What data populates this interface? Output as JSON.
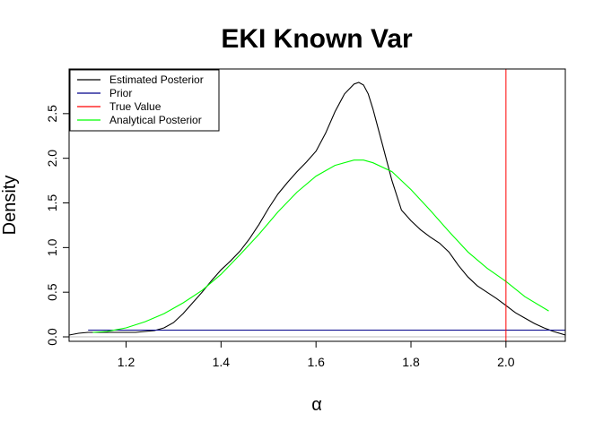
{
  "chart_data": {
    "type": "line",
    "title": "EKI Known Var",
    "xlabel": "α",
    "ylabel": "Density",
    "xlim": [
      1.08,
      2.125
    ],
    "ylim": [
      -0.05,
      3.0
    ],
    "x_ticks": [
      1.2,
      1.4,
      1.6,
      1.8,
      2.0
    ],
    "x_tick_labels": [
      "1.2",
      "1.4",
      "1.6",
      "1.8",
      "2.0"
    ],
    "y_ticks": [
      0.0,
      0.5,
      1.0,
      1.5,
      2.0,
      2.5
    ],
    "y_tick_labels": [
      "0.0",
      "0.5",
      "1.0",
      "1.5",
      "2.0",
      "2.5"
    ],
    "grid": false,
    "legend_position": "top-left",
    "legend": [
      {
        "label": "Estimated Posterior",
        "color": "#000000"
      },
      {
        "label": "Prior",
        "color": "#00008B"
      },
      {
        "label": "True Value",
        "color": "#FF0000"
      },
      {
        "label": "Analytical Posterior",
        "color": "#00FF00"
      }
    ],
    "series": [
      {
        "name": "Estimated Posterior",
        "color": "#000000",
        "x": [
          1.08,
          1.1,
          1.12,
          1.14,
          1.17,
          1.2,
          1.22,
          1.24,
          1.26,
          1.28,
          1.3,
          1.32,
          1.34,
          1.36,
          1.38,
          1.4,
          1.42,
          1.44,
          1.46,
          1.48,
          1.5,
          1.52,
          1.54,
          1.56,
          1.58,
          1.6,
          1.62,
          1.64,
          1.66,
          1.68,
          1.69,
          1.7,
          1.71,
          1.72,
          1.74,
          1.76,
          1.78,
          1.8,
          1.82,
          1.84,
          1.86,
          1.88,
          1.9,
          1.92,
          1.94,
          1.96,
          1.98,
          2.0,
          2.02,
          2.04,
          2.06,
          2.08,
          2.1,
          2.125
        ],
        "y": [
          0.02,
          0.04,
          0.05,
          0.05,
          0.05,
          0.05,
          0.05,
          0.06,
          0.07,
          0.1,
          0.16,
          0.26,
          0.38,
          0.5,
          0.63,
          0.75,
          0.85,
          0.96,
          1.1,
          1.26,
          1.44,
          1.6,
          1.73,
          1.85,
          1.96,
          2.08,
          2.28,
          2.52,
          2.72,
          2.83,
          2.85,
          2.82,
          2.72,
          2.55,
          2.15,
          1.75,
          1.42,
          1.3,
          1.2,
          1.12,
          1.05,
          0.95,
          0.8,
          0.67,
          0.57,
          0.5,
          0.43,
          0.35,
          0.27,
          0.21,
          0.15,
          0.1,
          0.06,
          0.02
        ]
      },
      {
        "name": "Prior",
        "color": "#00008B",
        "x": [
          1.12,
          2.125
        ],
        "y": [
          0.075,
          0.075
        ]
      },
      {
        "name": "Analytical Posterior",
        "color": "#00FF00",
        "x": [
          1.13,
          1.16,
          1.2,
          1.24,
          1.28,
          1.32,
          1.36,
          1.4,
          1.44,
          1.48,
          1.52,
          1.56,
          1.6,
          1.64,
          1.68,
          1.7,
          1.72,
          1.76,
          1.8,
          1.84,
          1.88,
          1.92,
          1.96,
          2.0,
          2.04,
          2.09
        ],
        "y": [
          0.05,
          0.06,
          0.1,
          0.17,
          0.26,
          0.38,
          0.52,
          0.7,
          0.92,
          1.15,
          1.4,
          1.62,
          1.8,
          1.92,
          1.98,
          1.98,
          1.95,
          1.85,
          1.65,
          1.42,
          1.18,
          0.95,
          0.77,
          0.62,
          0.45,
          0.29
        ]
      },
      {
        "name": "True Value",
        "color": "#FF0000",
        "vline": 2.0
      }
    ],
    "baseline": {
      "y": 0.0,
      "color": "#BEBEBE"
    }
  }
}
